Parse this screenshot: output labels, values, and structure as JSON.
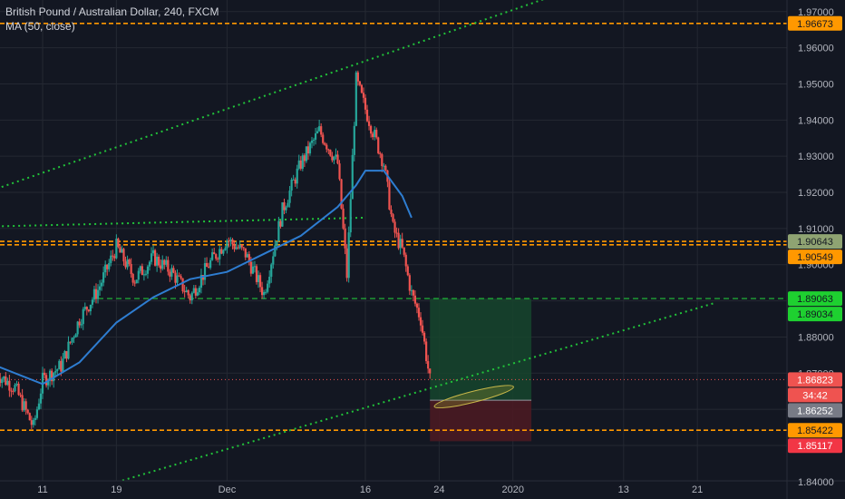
{
  "header": {
    "symbol_title": "British Pound / Australian Dollar, 240, FXCM",
    "indicator": "MA (50, close)"
  },
  "colors": {
    "background": "#131722",
    "grid": "#242832",
    "up_candle": "#26a69a",
    "down_candle": "#ef5350",
    "ma_line": "#2e7dd1",
    "trendline": "#21c33a",
    "support_resistance": "#ff9800",
    "target_zone": "#16452d",
    "stop_zone": "#4a1a22",
    "axis_text": "#b2b5be"
  },
  "chart_data": {
    "type": "candlestick",
    "title": "British Pound / Australian Dollar, 240, FXCM",
    "indicator": "MA (50, close)",
    "y_axis_ticks": [
      "1.97000",
      "1.96000",
      "1.95000",
      "1.94000",
      "1.93000",
      "1.92000",
      "1.91000",
      "1.90000",
      "1.89000",
      "1.88000",
      "1.87000",
      "1.86000",
      "1.85000",
      "1.84000"
    ],
    "ylim": [
      1.8352,
      1.9732
    ],
    "x_axis_ticks": [
      "11",
      "19",
      "Dec",
      "16",
      "24",
      "2020",
      "13",
      "21"
    ],
    "grid": true,
    "price_path": [
      [
        "Nov 6",
        1.87
      ],
      [
        "Nov 8",
        1.866
      ],
      [
        "Nov 10",
        1.855
      ],
      [
        "Nov 11",
        1.868
      ],
      [
        "Nov 13",
        1.872
      ],
      [
        "Nov 15",
        1.885
      ],
      [
        "Nov 17",
        1.893
      ],
      [
        "Nov 19",
        1.905
      ],
      [
        "Nov 21",
        1.896
      ],
      [
        "Nov 23",
        1.902
      ],
      [
        "Nov 25",
        1.898
      ],
      [
        "Nov 27",
        1.891
      ],
      [
        "Nov 29",
        1.9
      ],
      [
        "Dec 1",
        1.907
      ],
      [
        "Dec 3",
        1.903
      ],
      [
        "Dec 5",
        1.892
      ],
      [
        "Dec 7",
        1.915
      ],
      [
        "Dec 9",
        1.928
      ],
      [
        "Dec 11",
        1.937
      ],
      [
        "Dec 13",
        1.928
      ],
      [
        "Dec 14",
        1.897
      ],
      [
        "Dec 15",
        1.951
      ],
      [
        "Dec 16",
        1.943
      ],
      [
        "Dec 18",
        1.928
      ],
      [
        "Dec 19",
        1.91
      ],
      [
        "Dec 20",
        1.904
      ],
      [
        "Dec 21",
        1.892
      ],
      [
        "Dec 22",
        1.885
      ],
      [
        "Dec 23",
        1.868
      ]
    ],
    "moving_average": [
      [
        "Nov 6",
        1.872
      ],
      [
        "Nov 11",
        1.867
      ],
      [
        "Nov 15",
        1.873
      ],
      [
        "Nov 19",
        1.884
      ],
      [
        "Nov 23",
        1.891
      ],
      [
        "Nov 27",
        1.896
      ],
      [
        "Dec 1",
        1.898
      ],
      [
        "Dec 5",
        1.903
      ],
      [
        "Dec 9",
        1.908
      ],
      [
        "Dec 13",
        1.916
      ],
      [
        "Dec 15",
        1.922
      ],
      [
        "Dec 16",
        1.926
      ],
      [
        "Dec 18",
        1.926
      ],
      [
        "Dec 20",
        1.919
      ],
      [
        "Dec 21",
        1.913
      ]
    ],
    "horizontal_levels": [
      {
        "price": 1.96673,
        "label": "1.96673",
        "style": "dashed",
        "color": "#ff9800"
      },
      {
        "price": 1.90643,
        "label": "1.90643",
        "style": "dashed",
        "color": "#ff9800"
      },
      {
        "price": 1.90549,
        "label": "1.90549",
        "style": "dashed",
        "color": "#ff9800"
      },
      {
        "price": 1.89063,
        "label": "1.89063",
        "style": "dashed",
        "color": "#21c33a"
      },
      {
        "price": 1.85422,
        "label": "1.85422",
        "style": "dashed",
        "color": "#ff9800"
      }
    ],
    "price_labels": [
      {
        "text": "1.96673",
        "price": 1.96673,
        "bg": "#ff9800",
        "fg": "#131722"
      },
      {
        "text": "1.90643",
        "price": 1.90643,
        "bg": "#8fa372",
        "fg": "#131722"
      },
      {
        "text": "1.90549",
        "price": 1.90549,
        "bg": "#ff9800",
        "fg": "#131722"
      },
      {
        "text": "1.89063",
        "price": 1.89063,
        "bg": "#1ed030",
        "fg": "#131722"
      },
      {
        "text": "1.89034",
        "price": 1.89034,
        "bg": "#1ed030",
        "fg": "#131722"
      },
      {
        "text": "1.86823",
        "price": 1.86823,
        "bg": "#ef5350",
        "fg": "#ffffff"
      },
      {
        "text": "34:42",
        "price": 1.8658,
        "bg": "#ef5350",
        "fg": "#ffffff"
      },
      {
        "text": "1.86252",
        "price": 1.86252,
        "bg": "#787b86",
        "fg": "#ffffff"
      },
      {
        "text": "1.85422",
        "price": 1.85422,
        "bg": "#ff9800",
        "fg": "#131722"
      },
      {
        "text": "1.85117",
        "price": 1.85117,
        "bg": "#f23645",
        "fg": "#ffffff"
      }
    ],
    "current_price": 1.86823,
    "trendlines": [
      {
        "from": [
          "Nov 6",
          1.921
        ],
        "to": [
          "Jan 5",
          1.974
        ]
      },
      {
        "from": [
          "Nov 6",
          1.9106
        ],
        "to": [
          "Dec 16",
          1.913
        ]
      },
      {
        "from": [
          "Nov 14",
          1.836
        ],
        "to": [
          "Jan 23",
          1.8895
        ]
      }
    ],
    "long_position": {
      "entry": 1.86252,
      "target": 1.89063,
      "stop": 1.85117,
      "start": "Dec 23",
      "end": "Jan 3"
    }
  }
}
